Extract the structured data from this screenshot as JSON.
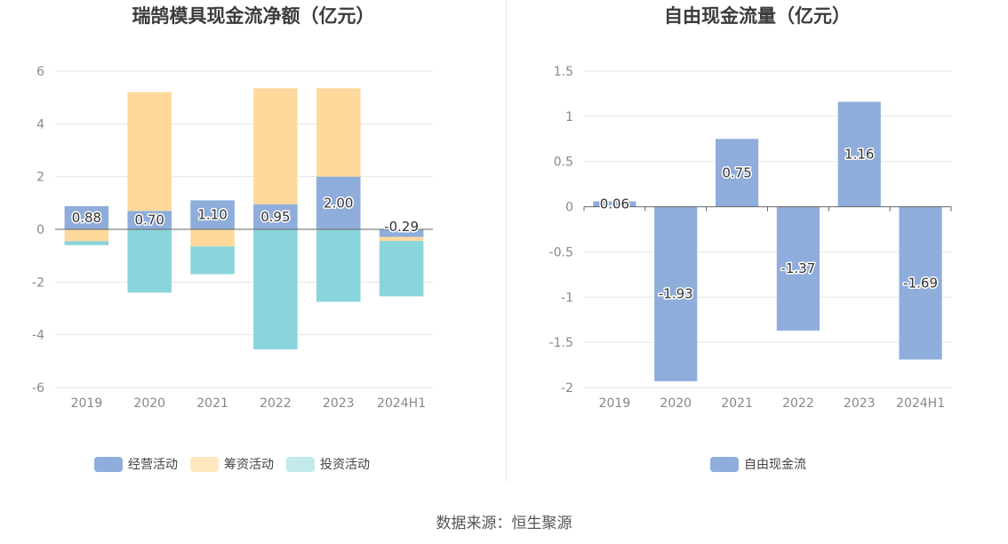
{
  "colors": {
    "operating": "#8eaddb",
    "financing": "#ffd99c",
    "investing": "#89d5db",
    "free_cash_flow": "#8eaddb",
    "grid": "#e6e6e6",
    "axis": "#666666",
    "tick_text": "#888888"
  },
  "source": "数据来源：恒生聚源",
  "chart_data": [
    {
      "type": "bar",
      "stacked": true,
      "title": "瑞鹄模具现金流净额（亿元）",
      "categories": [
        "2019",
        "2020",
        "2021",
        "2022",
        "2023",
        "2024H1"
      ],
      "ylim": [
        -6,
        6
      ],
      "yticks": [
        -6,
        -4,
        -2,
        0,
        2,
        4,
        6
      ],
      "grid": true,
      "legend": "bottom",
      "series": [
        {
          "name": "经营活动",
          "color_key": "operating",
          "values": [
            0.88,
            0.7,
            1.1,
            0.95,
            2.0,
            -0.29
          ],
          "labels": [
            "0.88",
            "0.70",
            "1.10",
            "0.95",
            "2.00",
            "-0.29"
          ]
        },
        {
          "name": "筹资活动",
          "color_key": "financing",
          "values": [
            -0.45,
            4.5,
            -0.65,
            4.4,
            3.35,
            -0.15
          ]
        },
        {
          "name": "投资活动",
          "color_key": "investing",
          "values": [
            -0.15,
            -2.4,
            -1.05,
            -4.55,
            -2.75,
            -2.1
          ]
        }
      ]
    },
    {
      "type": "bar",
      "title": "自由现金流量（亿元）",
      "categories": [
        "2019",
        "2020",
        "2021",
        "2022",
        "2023",
        "2024H1"
      ],
      "ylim": [
        -2,
        1.5
      ],
      "yticks": [
        -2,
        -1.5,
        -1,
        -0.5,
        0,
        0.5,
        1,
        1.5
      ],
      "grid": true,
      "legend": "bottom",
      "series": [
        {
          "name": "自由现金流",
          "color_key": "free_cash_flow",
          "values": [
            0.06,
            -1.93,
            0.75,
            -1.37,
            1.16,
            -1.69
          ],
          "labels": [
            "0.06",
            "-1.93",
            "0.75",
            "-1.37",
            "1.16",
            "-1.69"
          ]
        }
      ]
    }
  ]
}
